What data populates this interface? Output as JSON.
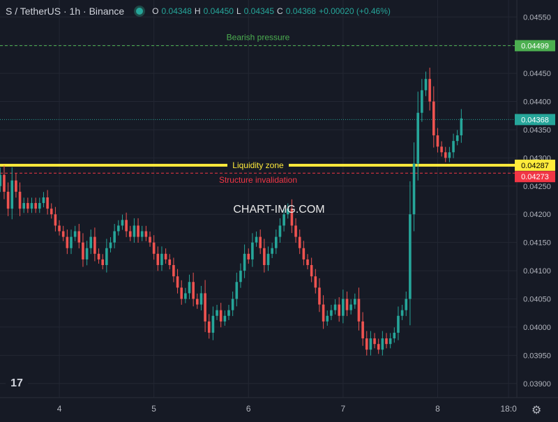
{
  "header": {
    "title": "S / TetherUS · 1h · Binance",
    "o_label": "O",
    "o_value": "0.04348",
    "h_label": "H",
    "h_value": "0.04450",
    "l_label": "L",
    "l_value": "0.04345",
    "c_label": "C",
    "c_value": "0.04368",
    "change": "+0.00020 (+0.46%)"
  },
  "watermark": "CHART-IMG.COM",
  "colors": {
    "background": "#161a25",
    "grid": "#232733",
    "up": "#26a69a",
    "down": "#ef5350",
    "green_level": "#4caf50",
    "yellow_level": "#ffeb3b",
    "red_level": "#f23645",
    "text": "#b2b5be"
  },
  "chart_data": {
    "type": "candlestick",
    "symbol": "S / TetherUS",
    "interval": "1h",
    "exchange": "Binance",
    "ylim": [
      0.03875,
      0.0458
    ],
    "y_ticks": [
      "0.04550",
      "0.04500",
      "0.04450",
      "0.04400",
      "0.04350",
      "0.04300",
      "0.04250",
      "0.04200",
      "0.04150",
      "0.04100",
      "0.04050",
      "0.04000",
      "0.03950",
      "0.03900"
    ],
    "x_ticks": [
      {
        "label": "4",
        "index": 17
      },
      {
        "label": "5",
        "index": 41
      },
      {
        "label": "6",
        "index": 65
      },
      {
        "label": "7",
        "index": 89
      },
      {
        "label": "8",
        "index": 113
      },
      {
        "label": "18:0",
        "index": 131
      }
    ],
    "levels": [
      {
        "name": "Bearish pressure",
        "value": 0.04499,
        "label": "0.04499",
        "style": "dashed",
        "color": "#4caf50"
      },
      {
        "name": "Liquidity zone",
        "value": 0.04287,
        "label": "0.04287",
        "style": "solid",
        "color": "#ffeb3b"
      },
      {
        "name": "Structure invalidation",
        "value": 0.04273,
        "label": "0.04273",
        "style": "dashed",
        "color": "#f23645"
      }
    ],
    "last_price": {
      "value": 0.04368,
      "label": "0.04368"
    },
    "closes": [
      0.0426,
      0.0425,
      0.0427,
      0.0424,
      0.0421,
      0.0426,
      0.0424,
      0.0421,
      0.0422,
      0.0421,
      0.0422,
      0.0421,
      0.0422,
      0.0423,
      0.0421,
      0.042,
      0.0418,
      0.0417,
      0.0416,
      0.0414,
      0.0416,
      0.0417,
      0.0415,
      0.0412,
      0.0414,
      0.0416,
      0.0413,
      0.0412,
      0.0411,
      0.0414,
      0.0415,
      0.0417,
      0.0418,
      0.0419,
      0.0417,
      0.0416,
      0.0418,
      0.0416,
      0.0417,
      0.0416,
      0.0415,
      0.0413,
      0.0411,
      0.0413,
      0.0412,
      0.0411,
      0.0409,
      0.0407,
      0.0405,
      0.0406,
      0.0408,
      0.0405,
      0.0404,
      0.0406,
      0.0401,
      0.0399,
      0.0402,
      0.0403,
      0.0401,
      0.0402,
      0.0403,
      0.0405,
      0.0408,
      0.041,
      0.0413,
      0.0412,
      0.0415,
      0.0416,
      0.0414,
      0.0411,
      0.0413,
      0.0414,
      0.0416,
      0.0418,
      0.042,
      0.0421,
      0.0418,
      0.0416,
      0.0414,
      0.0412,
      0.0411,
      0.0409,
      0.0407,
      0.0404,
      0.0401,
      0.0402,
      0.0403,
      0.0404,
      0.0402,
      0.0405,
      0.0403,
      0.0404,
      0.0405,
      0.0401,
      0.0398,
      0.0396,
      0.0398,
      0.0397,
      0.0396,
      0.0398,
      0.0397,
      0.0398,
      0.0399,
      0.0402,
      0.0403,
      0.0405,
      0.042,
      0.0429,
      0.0438,
      0.0442,
      0.0444,
      0.044,
      0.0434,
      0.0432,
      0.0431,
      0.043,
      0.0431,
      0.0433,
      0.0434,
      0.0437
    ]
  }
}
